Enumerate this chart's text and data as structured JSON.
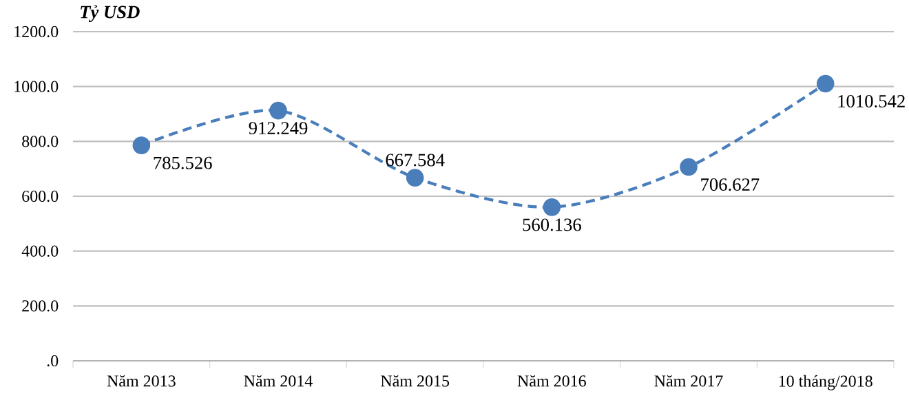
{
  "chart_data": {
    "type": "line",
    "ylabel": "*Tỷ USD*",
    "categories": [
      "Năm 2013",
      "Năm 2014",
      "Năm 2015",
      "Năm 2016",
      "Năm 2017",
      "10 tháng/2018"
    ],
    "series": [
      {
        "color": "#4a7ebb",
        "values": [
          785.526,
          912.249,
          667.584,
          560.136,
          706.627,
          1010.542
        ]
      }
    ],
    "ylim": [
      0,
      1200
    ],
    "yticks": [
      {
        "value": 0,
        "label": ".0"
      },
      {
        "value": 200,
        "label": "200.0"
      },
      {
        "value": 400,
        "label": "400.0"
      },
      {
        "value": 600,
        "label": "600.0"
      },
      {
        "value": 800,
        "label": "800.0"
      },
      {
        "value": 1000,
        "label": "1000.0"
      },
      {
        "value": 1200,
        "label": "1200.0"
      }
    ],
    "grid": "y",
    "marker": "circle",
    "line_style": "dashed",
    "data_labels": true
  }
}
